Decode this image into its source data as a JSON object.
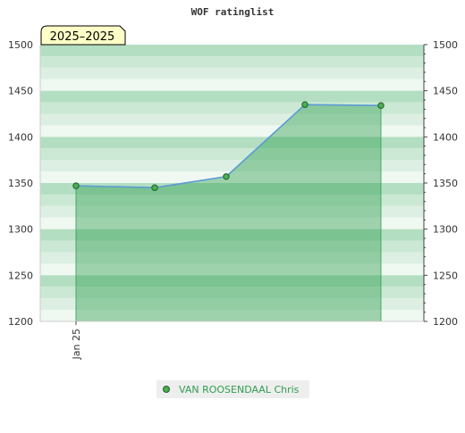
{
  "chart_data": {
    "type": "area",
    "title": "WOF ratinglist",
    "year_badge": "2025–2025",
    "xlabel": "",
    "ylabel": "",
    "ylim": [
      1200,
      1500
    ],
    "y_ticks": [
      1200,
      1250,
      1300,
      1350,
      1400,
      1450,
      1500
    ],
    "x_tick_labels": [
      "Jan 25"
    ],
    "series": [
      {
        "name": "VAN ROOSENDAAL Chris",
        "values": [
          1347,
          1345,
          1357,
          1435,
          1434
        ]
      }
    ],
    "legend_placement": "bottom-center",
    "grid": true,
    "colors": {
      "line": "#5b9bd5",
      "fill": "#2e9e4f",
      "marker": "#4caf50",
      "legend_text": "#2e9e4f",
      "band_dark": "#b3dec1",
      "band_light": "#f0f8f2"
    }
  }
}
